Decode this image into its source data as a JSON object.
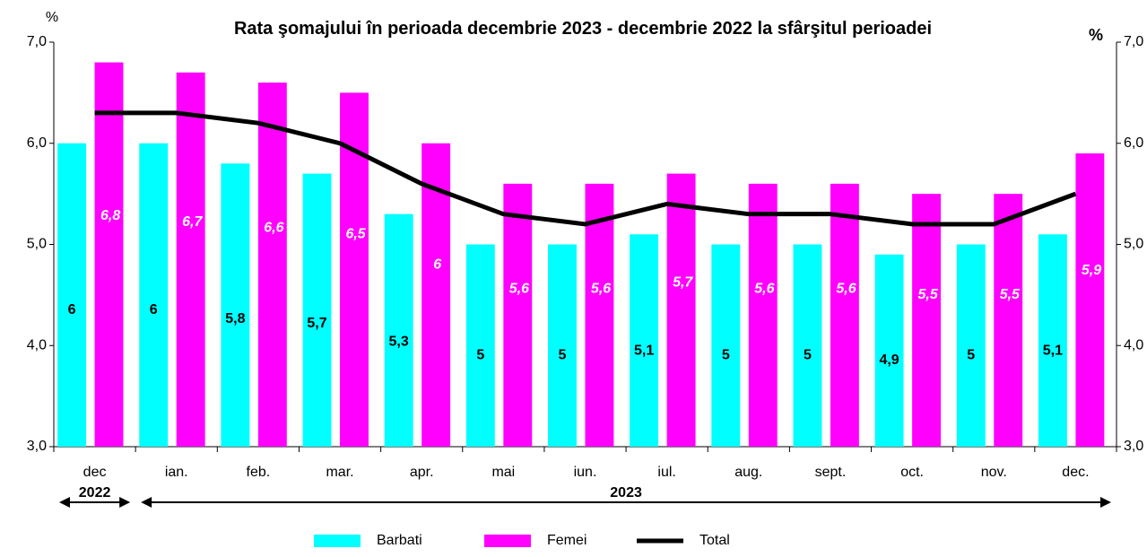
{
  "chart_data": {
    "type": "bar_line",
    "title": "Rata şomajului în perioada decembrie 2023 - decembrie 2022 la sfârşitul perioadei",
    "y_unit": "%",
    "y2_unit": "%",
    "categories": [
      "dec",
      "ian.",
      "feb.",
      "mar.",
      "apr.",
      "mai",
      "iun.",
      "iul.",
      "aug.",
      "sept.",
      "oct.",
      "nov.",
      "dec."
    ],
    "year_groups": [
      {
        "label": "2022",
        "count": 1
      },
      {
        "label": "2023",
        "count": 12
      }
    ],
    "series": [
      {
        "name": "Barbati",
        "type": "bar",
        "color": "#00ffff",
        "values": [
          6,
          6,
          5.8,
          5.7,
          5.3,
          5,
          5,
          5.1,
          5,
          5,
          4.9,
          5,
          5.1
        ],
        "value_labels": [
          "6",
          "6",
          "5,8",
          "5,7",
          "5,3",
          "5",
          "5",
          "5,1",
          "5",
          "5",
          "4,9",
          "5",
          "5,1"
        ]
      },
      {
        "name": "Femei",
        "type": "bar",
        "color": "#ff00ff",
        "values": [
          6.8,
          6.7,
          6.6,
          6.5,
          6,
          5.6,
          5.6,
          5.7,
          5.6,
          5.6,
          5.5,
          5.5,
          5.9
        ],
        "value_labels": [
          "6,8",
          "6,7",
          "6,6",
          "6,5",
          "6",
          "5,6",
          "5,6",
          "5,7",
          "5,6",
          "5,6",
          "5,5",
          "5,5",
          "5,9"
        ]
      },
      {
        "name": "Total",
        "type": "line",
        "color": "#000000",
        "values": [
          6.3,
          6.3,
          6.2,
          6.0,
          5.6,
          5.3,
          5.2,
          5.4,
          5.3,
          5.3,
          5.2,
          5.2,
          5.5
        ]
      }
    ],
    "ylim": [
      3,
      7
    ],
    "yticks": [
      {
        "value": 3,
        "label": "3,0"
      },
      {
        "value": 4,
        "label": "4,0"
      },
      {
        "value": 5,
        "label": "5,0"
      },
      {
        "value": 6,
        "label": "6,0"
      },
      {
        "value": 7,
        "label": "7,0"
      }
    ],
    "y2lim": [
      3,
      7
    ],
    "y2ticks": [
      {
        "value": 3,
        "label": "3,0"
      },
      {
        "value": 4,
        "label": "4,0"
      },
      {
        "value": 5,
        "label": "5,0"
      },
      {
        "value": 6,
        "label": "6,0"
      },
      {
        "value": 7,
        "label": "7,0"
      }
    ],
    "legend": "bottom"
  }
}
